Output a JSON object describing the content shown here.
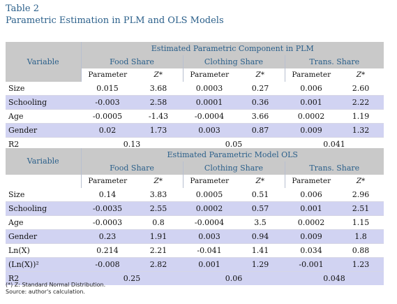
{
  "caption": {
    "table_label": "Table 2",
    "title": "Parametric Estimation in PLM and OLS Models"
  },
  "headers": {
    "variable": "Variable",
    "groups": [
      "Food Share",
      "Clothing Share",
      "Trans. Share"
    ],
    "parameter": "Parameter",
    "z": "Z*"
  },
  "section1": {
    "title": "Estimated Parametric Component in PLM",
    "rows": [
      {
        "name": "Size",
        "values": [
          "0.015",
          "3.68",
          "0.0003",
          "0.27",
          "0.006",
          "2.60"
        ]
      },
      {
        "name": "Schooling",
        "values": [
          "-0.003",
          "2.58",
          "0.0001",
          "0.36",
          "0.001",
          "2.22"
        ]
      },
      {
        "name": "Age",
        "values": [
          "-0.0005",
          "-1.43",
          "-0.0004",
          "3.66",
          "0.0002",
          "1.19"
        ]
      },
      {
        "name": "Gender",
        "values": [
          "0.02",
          "1.73",
          "0.003",
          "0.87",
          "0.009",
          "1.32"
        ]
      }
    ],
    "r2": {
      "label": "R2",
      "values": [
        "0.13",
        "0.05",
        "0.041"
      ]
    }
  },
  "section2": {
    "title": "Estimated Parametric Model OLS",
    "rows": [
      {
        "name": "Size",
        "values": [
          "0.14",
          "3.83",
          "0.0005",
          "0.51",
          "0.006",
          "2.96"
        ]
      },
      {
        "name": "Schooling",
        "values": [
          "-0.0035",
          "2.55",
          "0.0002",
          "0.57",
          "0.001",
          "2.51"
        ]
      },
      {
        "name": "Age",
        "values": [
          "-0.0003",
          "0.8",
          "-0.0004",
          "3.5",
          "0.0002",
          "1.15"
        ]
      },
      {
        "name": "Gender",
        "values": [
          "0.23",
          "1.91",
          "0.003",
          "0.94",
          "0.009",
          "1.8"
        ]
      },
      {
        "name": "Ln(X)",
        "values": [
          "0.214",
          "2.21",
          "-0.041",
          "1.41",
          "0.034",
          "0.88"
        ]
      },
      {
        "name": "(Ln(X))²",
        "values": [
          "-0.008",
          "2.82",
          "0.001",
          "1.29",
          "-0.001",
          "1.23"
        ]
      }
    ],
    "r2": {
      "label": "R2",
      "values": [
        "0.25",
        "0.06",
        "0.048"
      ]
    }
  },
  "footnotes": {
    "note": "(*) Z: Standard Normal Distribution.",
    "source": "Source: author's calculation."
  }
}
